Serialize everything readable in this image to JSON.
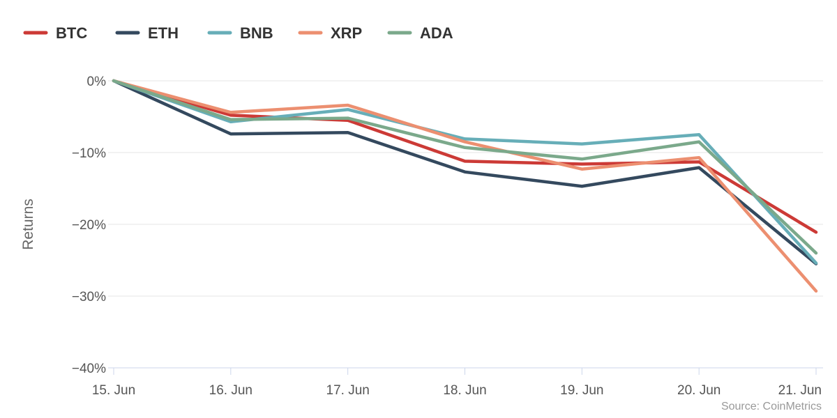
{
  "chart_data": {
    "type": "line",
    "title": "",
    "xlabel": "",
    "ylabel": "Returns",
    "categories": [
      "15. Jun",
      "16. Jun",
      "17. Jun",
      "18. Jun",
      "19. Jun",
      "20. Jun",
      "21. Jun"
    ],
    "y_ticks": [
      0,
      -10,
      -20,
      -30,
      -40
    ],
    "y_tick_labels": [
      "0%",
      "−10%",
      "−20%",
      "−30%",
      "−40%"
    ],
    "ylim": [
      -40,
      0
    ],
    "legend_position": "top-left",
    "grid": true,
    "series": [
      {
        "name": "BTC",
        "color": "#cc3a36",
        "values": [
          0,
          -4.8,
          -5.5,
          -11.2,
          -11.6,
          -11.3,
          -21.1
        ]
      },
      {
        "name": "ETH",
        "color": "#34495e",
        "values": [
          0,
          -7.4,
          -7.2,
          -12.7,
          -14.7,
          -12.1,
          -25.5
        ]
      },
      {
        "name": "BNB",
        "color": "#67aeb8",
        "values": [
          0,
          -5.7,
          -4.0,
          -8.1,
          -8.8,
          -7.5,
          -25.4
        ]
      },
      {
        "name": "XRP",
        "color": "#ec8f70",
        "values": [
          0,
          -4.4,
          -3.4,
          -8.5,
          -12.3,
          -10.7,
          -29.3
        ]
      },
      {
        "name": "ADA",
        "color": "#7ba98b",
        "values": [
          0,
          -5.4,
          -5.2,
          -9.3,
          -10.9,
          -8.5,
          -24.0
        ]
      }
    ],
    "source": "Source: CoinMetrics"
  }
}
